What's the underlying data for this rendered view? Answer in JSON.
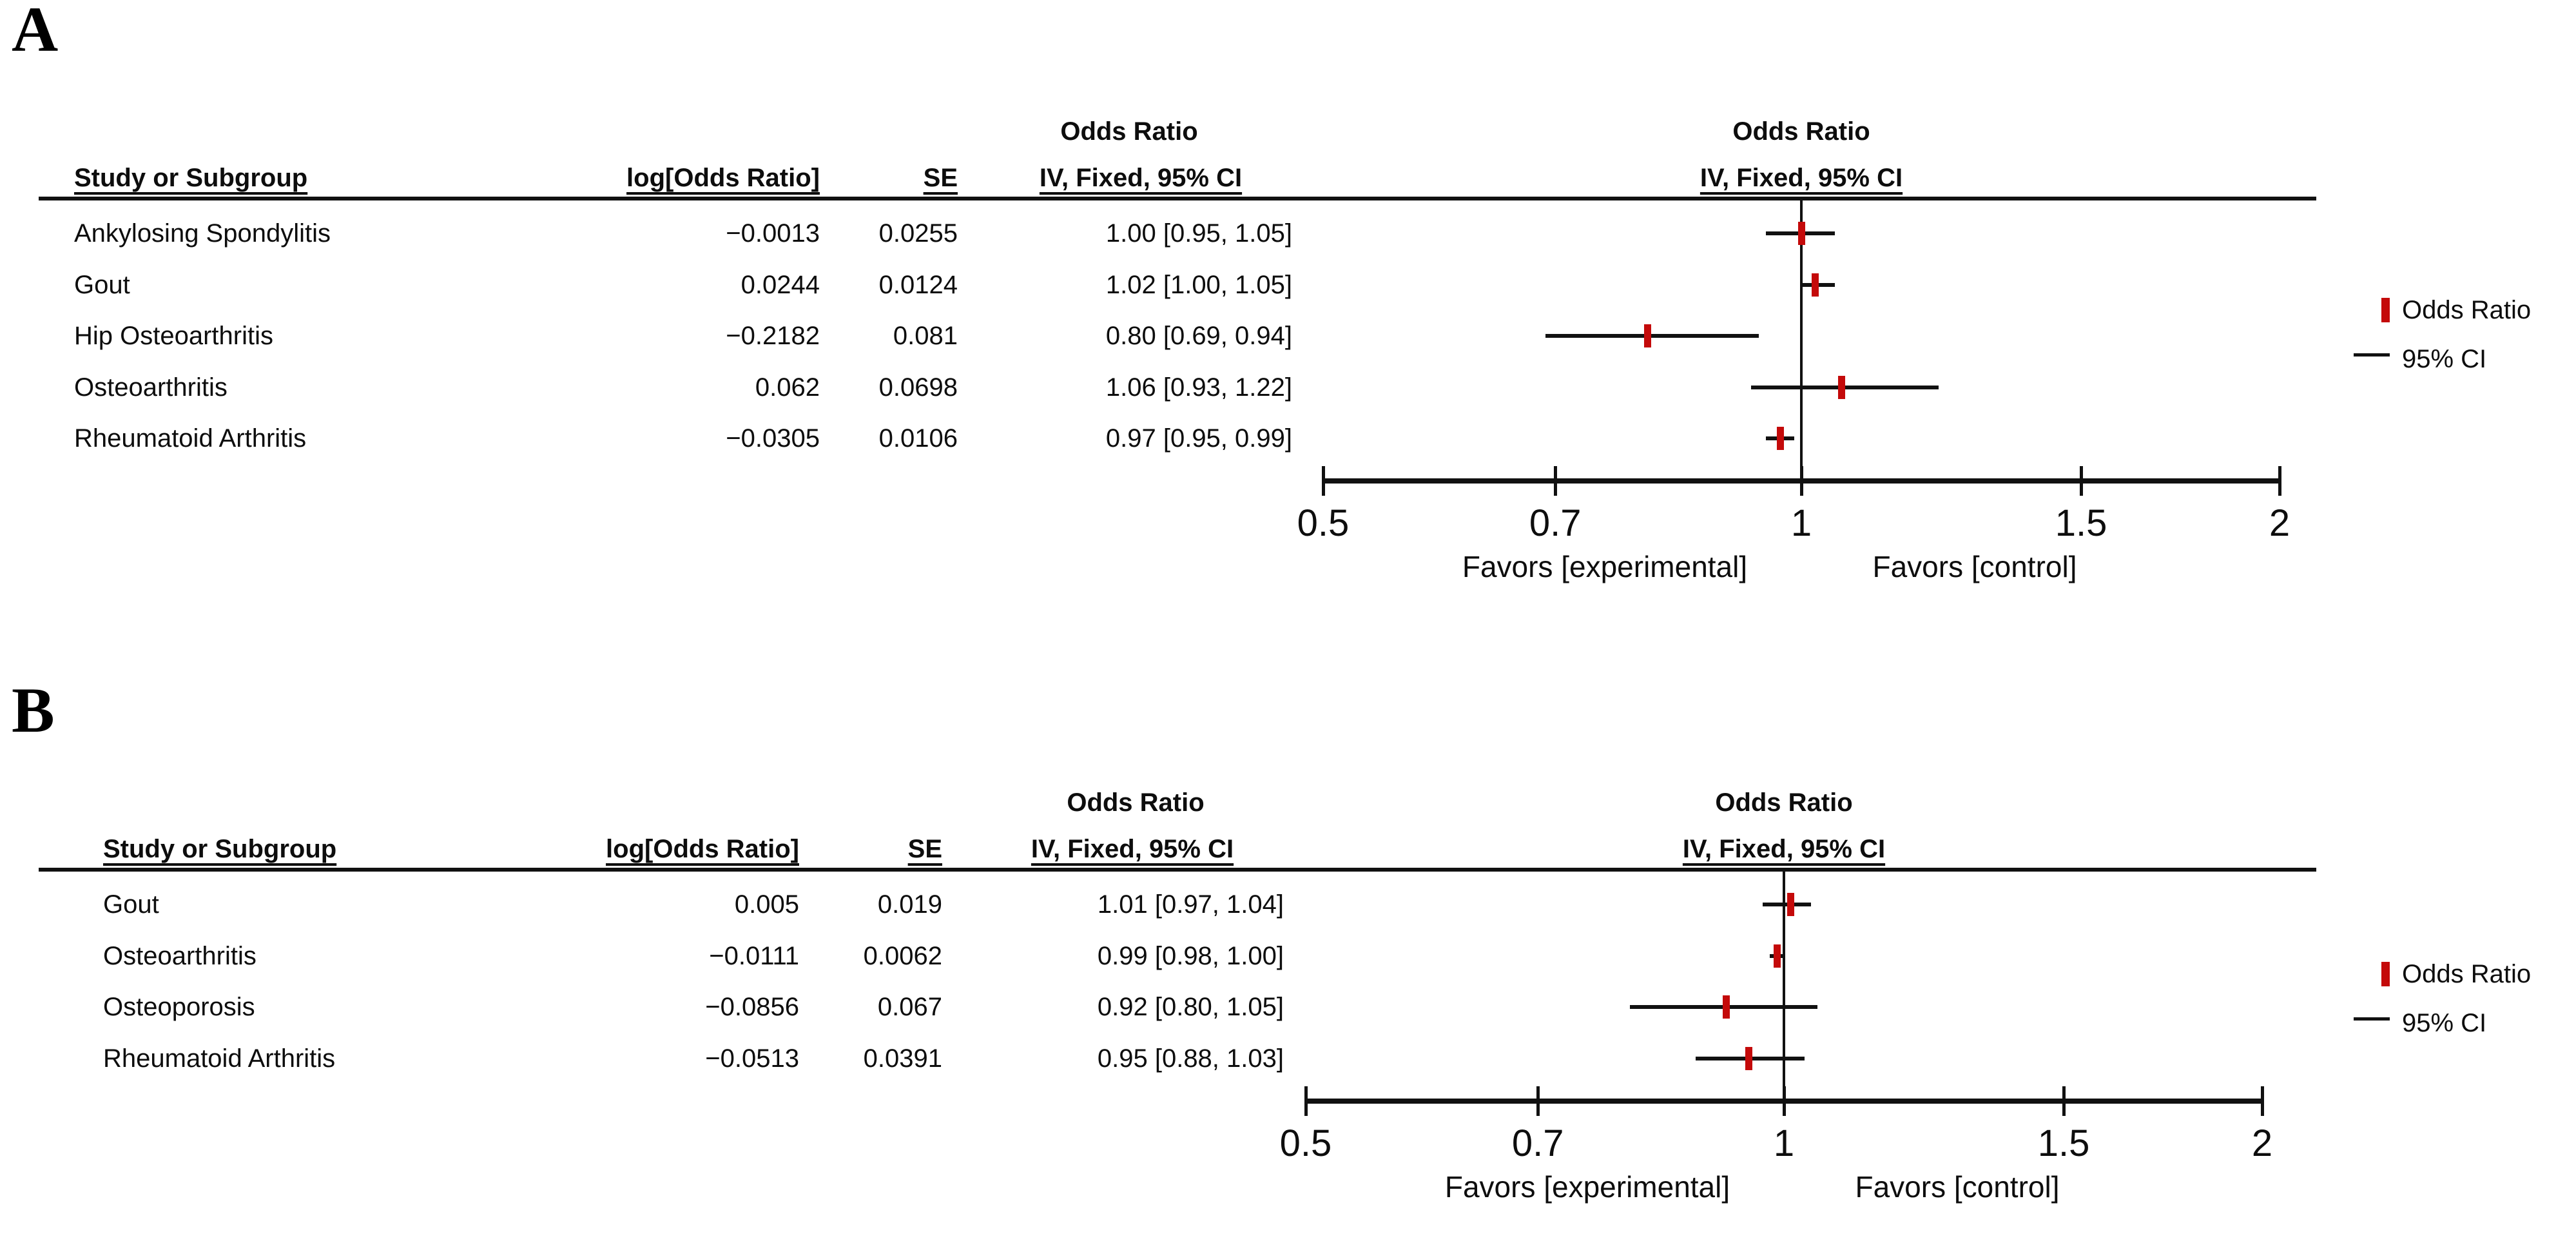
{
  "figure": {
    "background": "#ffffff",
    "marker_color": "#c40a0a",
    "line_color": "#111111",
    "text_color": "#0d0d0d"
  },
  "panels": [
    {
      "label": "A",
      "table": {
        "study_header": "Study or Subgroup",
        "logor_header": "log[Odds Ratio]",
        "se_header": "SE",
        "effect_header_top": "Odds Ratio",
        "effect_header_bottom": "IV, Fixed, 95% CI"
      },
      "plot": {
        "effect_header_top": "Odds Ratio",
        "effect_header_bottom": "IV, Fixed, 95% CI",
        "ticks": [
          0.5,
          0.7,
          1,
          1.5,
          2
        ],
        "tick_labels": [
          "0.5",
          "0.7",
          "1",
          "1.5",
          "2"
        ],
        "scale": "log",
        "favors_left": "Favors [experimental]",
        "favors_right": "Favors [control]"
      },
      "legend": {
        "marker_label": "Odds Ratio",
        "ci_label": "95% CI"
      },
      "rows": [
        {
          "study": "Ankylosing Spondylitis",
          "log_or": "−0.0013",
          "se": "0.0255",
          "ci_text": "1.00 [0.95, 1.05]",
          "or": 1.0,
          "low": 0.95,
          "high": 1.05
        },
        {
          "study": "Gout",
          "log_or": "0.0244",
          "se": "0.0124",
          "ci_text": "1.02 [1.00, 1.05]",
          "or": 1.02,
          "low": 1.0,
          "high": 1.05
        },
        {
          "study": "Hip Osteoarthritis",
          "log_or": "−0.2182",
          "se": "0.081",
          "ci_text": "0.80 [0.69, 0.94]",
          "or": 0.8,
          "low": 0.69,
          "high": 0.94
        },
        {
          "study": "Osteoarthritis",
          "log_or": "0.062",
          "se": "0.0698",
          "ci_text": "1.06 [0.93, 1.22]",
          "or": 1.06,
          "low": 0.93,
          "high": 1.22
        },
        {
          "study": "Rheumatoid Arthritis",
          "log_or": "−0.0305",
          "se": "0.0106",
          "ci_text": "0.97 [0.95, 0.99]",
          "or": 0.97,
          "low": 0.95,
          "high": 0.99
        }
      ]
    },
    {
      "label": "B",
      "table": {
        "study_header": "Study or Subgroup",
        "logor_header": "log[Odds Ratio]",
        "se_header": "SE",
        "effect_header_top": "Odds Ratio",
        "effect_header_bottom": "IV, Fixed, 95% CI"
      },
      "plot": {
        "effect_header_top": "Odds Ratio",
        "effect_header_bottom": "IV, Fixed, 95% CI",
        "ticks": [
          0.5,
          0.7,
          1,
          1.5,
          2
        ],
        "tick_labels": [
          "0.5",
          "0.7",
          "1",
          "1.5",
          "2"
        ],
        "scale": "log",
        "favors_left": "Favors [experimental]",
        "favors_right": "Favors [control]"
      },
      "legend": {
        "marker_label": "Odds Ratio",
        "ci_label": "95% CI"
      },
      "rows": [
        {
          "study": "Gout",
          "log_or": "0.005",
          "se": "0.019",
          "ci_text": "1.01 [0.97, 1.04]",
          "or": 1.01,
          "low": 0.97,
          "high": 1.04
        },
        {
          "study": "Osteoarthritis",
          "log_or": "−0.0111",
          "se": "0.0062",
          "ci_text": "0.99 [0.98, 1.00]",
          "or": 0.99,
          "low": 0.98,
          "high": 1.0
        },
        {
          "study": "Osteoporosis",
          "log_or": "−0.0856",
          "se": "0.067",
          "ci_text": "0.92 [0.80, 1.05]",
          "or": 0.92,
          "low": 0.8,
          "high": 1.05
        },
        {
          "study": "Rheumatoid Arthritis",
          "log_or": "−0.0513",
          "se": "0.0391",
          "ci_text": "0.95 [0.88, 1.03]",
          "or": 0.95,
          "low": 0.88,
          "high": 1.03
        }
      ]
    }
  ],
  "chart_data": [
    {
      "type": "scatter",
      "variant": "forest-plot",
      "panel": "A",
      "title": "Odds Ratio — IV, Fixed, 95% CI",
      "x_scale": "log",
      "x_range": [
        0.5,
        2
      ],
      "x_ticks": [
        0.5,
        0.7,
        1,
        1.5,
        2
      ],
      "xlabel_left": "Favors [experimental]",
      "xlabel_right": "Favors [control]",
      "legend": [
        "Odds Ratio",
        "95% CI"
      ],
      "categories": [
        "Ankylosing Spondylitis",
        "Gout",
        "Hip Osteoarthritis",
        "Osteoarthritis",
        "Rheumatoid Arthritis"
      ],
      "log_odds_ratio": [
        -0.0013,
        0.0244,
        -0.2182,
        0.062,
        -0.0305
      ],
      "se": [
        0.0255,
        0.0124,
        0.081,
        0.0698,
        0.0106
      ],
      "odds_ratio": [
        1.0,
        1.02,
        0.8,
        1.06,
        0.97
      ],
      "ci_low": [
        0.95,
        1.0,
        0.69,
        0.93,
        0.95
      ],
      "ci_high": [
        1.05,
        1.05,
        0.94,
        1.22,
        0.99
      ]
    },
    {
      "type": "scatter",
      "variant": "forest-plot",
      "panel": "B",
      "title": "Odds Ratio — IV, Fixed, 95% CI",
      "x_scale": "log",
      "x_range": [
        0.5,
        2
      ],
      "x_ticks": [
        0.5,
        0.7,
        1,
        1.5,
        2
      ],
      "xlabel_left": "Favors [experimental]",
      "xlabel_right": "Favors [control]",
      "legend": [
        "Odds Ratio",
        "95% CI"
      ],
      "categories": [
        "Gout",
        "Osteoarthritis",
        "Osteoporosis",
        "Rheumatoid Arthritis"
      ],
      "log_odds_ratio": [
        0.005,
        -0.0111,
        -0.0856,
        -0.0513
      ],
      "se": [
        0.019,
        0.0062,
        0.067,
        0.0391
      ],
      "odds_ratio": [
        1.01,
        0.99,
        0.92,
        0.95
      ],
      "ci_low": [
        0.97,
        0.98,
        0.8,
        0.88
      ],
      "ci_high": [
        1.04,
        1.0,
        1.05,
        1.03
      ]
    }
  ]
}
